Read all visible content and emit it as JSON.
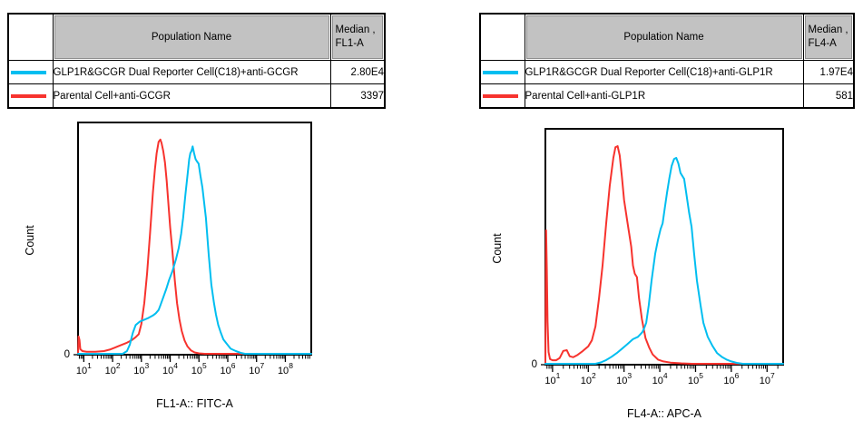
{
  "panels": [
    {
      "table": {
        "population_header": "Population Name",
        "median_header_line1": "Median ,",
        "median_header_line2": "FL1-A"
      }
    },
    {
      "table": {
        "population_header": "Population Name",
        "median_header_line1": "Median ,",
        "median_header_line2": "FL4-A"
      }
    }
  ],
  "chart_data": [
    {
      "type": "line",
      "subtype": "flow-cytometry-histogram",
      "xlabel": "FL1-A:: FITC-A",
      "ylabel": "Count",
      "xscale": "log10",
      "x_log_min": 0.8,
      "x_log_max": 8.9,
      "x_major_tick_exponents": [
        1,
        2,
        3,
        4,
        5,
        6,
        7,
        8
      ],
      "y_tick_labels": [
        "0"
      ],
      "y_units": "normalized count (fraction of axis height)",
      "grid": false,
      "legend_position": "table-above",
      "series": [
        {
          "name": "GLP1R&GCGR Dual Reporter Cell(C18)+anti-GCGR",
          "color": "#00BEF0",
          "median_label": "2.80E4",
          "points": [
            [
              0.8,
              0.0
            ],
            [
              2.35,
              0.0
            ],
            [
              2.5,
              0.012
            ],
            [
              2.6,
              0.04
            ],
            [
              2.7,
              0.09
            ],
            [
              2.8,
              0.125
            ],
            [
              2.95,
              0.14
            ],
            [
              3.1,
              0.148
            ],
            [
              3.25,
              0.156
            ],
            [
              3.4,
              0.166
            ],
            [
              3.5,
              0.176
            ],
            [
              3.6,
              0.19
            ],
            [
              3.66,
              0.21
            ],
            [
              3.76,
              0.245
            ],
            [
              3.86,
              0.28
            ],
            [
              3.96,
              0.32
            ],
            [
              4.08,
              0.36
            ],
            [
              4.2,
              0.41
            ],
            [
              4.3,
              0.46
            ],
            [
              4.38,
              0.52
            ],
            [
              4.45,
              0.59
            ],
            [
              4.53,
              0.69
            ],
            [
              4.61,
              0.785
            ],
            [
              4.66,
              0.845
            ],
            [
              4.7,
              0.87
            ],
            [
              4.74,
              0.88
            ],
            [
              4.78,
              0.9
            ],
            [
              4.83,
              0.87
            ],
            [
              4.88,
              0.845
            ],
            [
              4.93,
              0.835
            ],
            [
              4.99,
              0.825
            ],
            [
              5.05,
              0.775
            ],
            [
              5.12,
              0.72
            ],
            [
              5.24,
              0.59
            ],
            [
              5.34,
              0.43
            ],
            [
              5.43,
              0.3
            ],
            [
              5.52,
              0.22
            ],
            [
              5.59,
              0.17
            ],
            [
              5.67,
              0.125
            ],
            [
              5.75,
              0.094
            ],
            [
              5.85,
              0.062
            ],
            [
              5.97,
              0.043
            ],
            [
              6.1,
              0.022
            ],
            [
              6.28,
              0.012
            ],
            [
              6.45,
              0.004
            ],
            [
              6.6,
              0.0
            ],
            [
              8.9,
              0.0
            ]
          ]
        },
        {
          "name": "Parental Cell+anti-GCGR",
          "color": "#F7332E",
          "median_label": "3397",
          "points": [
            [
              0.8,
              0.0
            ],
            [
              0.82,
              0.075
            ],
            [
              0.85,
              0.06
            ],
            [
              0.88,
              0.02
            ],
            [
              0.95,
              0.012
            ],
            [
              1.1,
              0.009
            ],
            [
              1.4,
              0.009
            ],
            [
              1.7,
              0.012
            ],
            [
              1.9,
              0.018
            ],
            [
              2.1,
              0.028
            ],
            [
              2.3,
              0.038
            ],
            [
              2.5,
              0.048
            ],
            [
              2.65,
              0.058
            ],
            [
              2.8,
              0.072
            ],
            [
              2.91,
              0.085
            ],
            [
              3.0,
              0.13
            ],
            [
              3.1,
              0.22
            ],
            [
              3.2,
              0.35
            ],
            [
              3.3,
              0.52
            ],
            [
              3.4,
              0.7
            ],
            [
              3.47,
              0.8
            ],
            [
              3.53,
              0.87
            ],
            [
              3.6,
              0.92
            ],
            [
              3.66,
              0.93
            ],
            [
              3.7,
              0.915
            ],
            [
              3.76,
              0.88
            ],
            [
              3.82,
              0.83
            ],
            [
              3.88,
              0.75
            ],
            [
              3.94,
              0.65
            ],
            [
              4.0,
              0.55
            ],
            [
              4.08,
              0.44
            ],
            [
              4.16,
              0.32
            ],
            [
              4.24,
              0.22
            ],
            [
              4.32,
              0.15
            ],
            [
              4.4,
              0.1
            ],
            [
              4.5,
              0.058
            ],
            [
              4.6,
              0.032
            ],
            [
              4.72,
              0.015
            ],
            [
              4.85,
              0.006
            ],
            [
              5.0,
              0.002
            ],
            [
              5.2,
              0.0
            ],
            [
              8.9,
              0.0
            ]
          ]
        }
      ]
    },
    {
      "type": "line",
      "subtype": "flow-cytometry-histogram",
      "xlabel": "FL4-A:: APC-A",
      "ylabel": "Count",
      "xscale": "log10",
      "x_log_min": 0.8,
      "x_log_max": 7.45,
      "x_major_tick_exponents": [
        1,
        2,
        3,
        4,
        5,
        6,
        7
      ],
      "y_tick_labels": [
        "0"
      ],
      "y_units": "normalized count (fraction of axis height)",
      "grid": false,
      "legend_position": "table-above",
      "series": [
        {
          "name": "GLP1R&GCGR Dual Reporter Cell(C18)+anti-GLP1R",
          "color": "#00BEF0",
          "median_label": "1.97E4",
          "points": [
            [
              0.8,
              0.0
            ],
            [
              2.2,
              0.0
            ],
            [
              2.35,
              0.006
            ],
            [
              2.5,
              0.016
            ],
            [
              2.65,
              0.03
            ],
            [
              2.8,
              0.046
            ],
            [
              2.95,
              0.065
            ],
            [
              3.1,
              0.085
            ],
            [
              3.25,
              0.105
            ],
            [
              3.39,
              0.115
            ],
            [
              3.45,
              0.125
            ],
            [
              3.51,
              0.135
            ],
            [
              3.56,
              0.15
            ],
            [
              3.62,
              0.175
            ],
            [
              3.69,
              0.25
            ],
            [
              3.77,
              0.355
            ],
            [
              3.87,
              0.47
            ],
            [
              3.95,
              0.53
            ],
            [
              4.02,
              0.575
            ],
            [
              4.08,
              0.6
            ],
            [
              4.13,
              0.655
            ],
            [
              4.2,
              0.73
            ],
            [
              4.27,
              0.795
            ],
            [
              4.33,
              0.845
            ],
            [
              4.4,
              0.875
            ],
            [
              4.46,
              0.88
            ],
            [
              4.52,
              0.855
            ],
            [
              4.58,
              0.815
            ],
            [
              4.62,
              0.805
            ],
            [
              4.68,
              0.79
            ],
            [
              4.74,
              0.73
            ],
            [
              4.82,
              0.645
            ],
            [
              4.89,
              0.585
            ],
            [
              4.96,
              0.47
            ],
            [
              5.04,
              0.355
            ],
            [
              5.14,
              0.25
            ],
            [
              5.22,
              0.175
            ],
            [
              5.34,
              0.115
            ],
            [
              5.47,
              0.077
            ],
            [
              5.6,
              0.046
            ],
            [
              5.75,
              0.028
            ],
            [
              5.88,
              0.017
            ],
            [
              6.0,
              0.01
            ],
            [
              6.15,
              0.004
            ],
            [
              6.32,
              0.0
            ],
            [
              7.45,
              0.0
            ]
          ]
        },
        {
          "name": "Parental Cell+anti-GLP1R",
          "color": "#F7332E",
          "median_label": "581",
          "points": [
            [
              0.8,
              0.0
            ],
            [
              0.82,
              0.57
            ],
            [
              0.84,
              0.4
            ],
            [
              0.86,
              0.18
            ],
            [
              0.89,
              0.05
            ],
            [
              0.93,
              0.02
            ],
            [
              1.0,
              0.015
            ],
            [
              1.1,
              0.015
            ],
            [
              1.2,
              0.025
            ],
            [
              1.3,
              0.055
            ],
            [
              1.4,
              0.058
            ],
            [
              1.48,
              0.032
            ],
            [
              1.58,
              0.028
            ],
            [
              1.7,
              0.038
            ],
            [
              1.85,
              0.055
            ],
            [
              2.0,
              0.075
            ],
            [
              2.1,
              0.1
            ],
            [
              2.2,
              0.16
            ],
            [
              2.3,
              0.28
            ],
            [
              2.4,
              0.42
            ],
            [
              2.5,
              0.6
            ],
            [
              2.6,
              0.76
            ],
            [
              2.7,
              0.88
            ],
            [
              2.76,
              0.925
            ],
            [
              2.82,
              0.93
            ],
            [
              2.88,
              0.89
            ],
            [
              2.94,
              0.8
            ],
            [
              3.0,
              0.7
            ],
            [
              3.1,
              0.6
            ],
            [
              3.2,
              0.5
            ],
            [
              3.25,
              0.42
            ],
            [
              3.3,
              0.385
            ],
            [
              3.36,
              0.37
            ],
            [
              3.42,
              0.28
            ],
            [
              3.5,
              0.19
            ],
            [
              3.6,
              0.11
            ],
            [
              3.7,
              0.07
            ],
            [
              3.8,
              0.04
            ],
            [
              3.95,
              0.018
            ],
            [
              4.1,
              0.01
            ],
            [
              4.3,
              0.005
            ],
            [
              4.6,
              0.002
            ],
            [
              4.9,
              0.0
            ],
            [
              7.45,
              0.0
            ]
          ]
        }
      ]
    }
  ]
}
